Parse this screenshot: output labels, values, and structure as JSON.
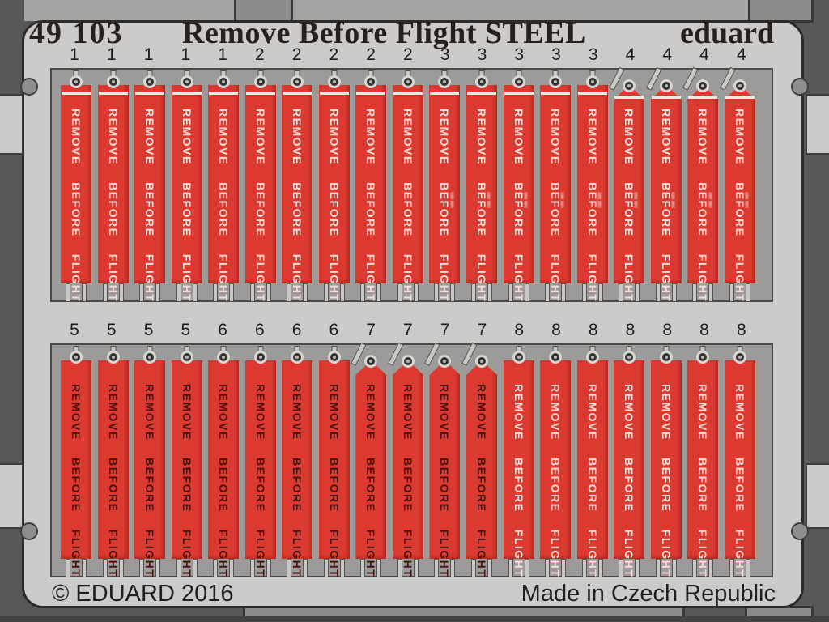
{
  "header": {
    "catalog_number": "49 103",
    "title": "Remove Before Flight STEEL",
    "brand": "eduard"
  },
  "footer": {
    "copyright": "© EDUARD 2016",
    "origin": "Made in Czech Republic"
  },
  "tag_text": "REMOVE BEFORE FLIGHT",
  "micro_text": "llllllll llllllll",
  "rows": [
    {
      "numbers": [
        "1",
        "1",
        "1",
        "1",
        "1",
        "2",
        "2",
        "2",
        "2",
        "2",
        "3",
        "3",
        "3",
        "3",
        "3",
        "4",
        "4",
        "4",
        "4"
      ]
    },
    {
      "numbers": [
        "5",
        "5",
        "5",
        "5",
        "6",
        "6",
        "6",
        "6",
        "7",
        "7",
        "7",
        "7",
        "8",
        "8",
        "8",
        "8",
        "8",
        "8",
        "8"
      ]
    }
  ],
  "groups": {
    "1": {
      "shape": "flat",
      "text": "light",
      "stripe": true,
      "micro": false
    },
    "2": {
      "shape": "flat",
      "text": "light",
      "stripe": true,
      "micro": false
    },
    "3": {
      "shape": "flat",
      "text": "light",
      "stripe": true,
      "micro": true
    },
    "4": {
      "shape": "pennant",
      "text": "light",
      "stripe": true,
      "micro": true
    },
    "5": {
      "shape": "flat",
      "text": "dark",
      "stripe": false,
      "micro": false
    },
    "6": {
      "shape": "flat",
      "text": "dark",
      "stripe": false,
      "micro": false
    },
    "7": {
      "shape": "pennant",
      "text": "dark",
      "stripe": false,
      "micro": false
    },
    "8": {
      "shape": "flat",
      "text": "light",
      "stripe": false,
      "micro": false
    }
  },
  "colors": {
    "bg": "#585856",
    "band": "#a6a5a3",
    "tab": "#8d8c8a",
    "tab_edge": "#3a3937",
    "sheet": "#cccbc9",
    "ink": "#26211d",
    "opening": "#9c9b99",
    "opening_edge": "#4a4948",
    "metal": "#c9c8c6",
    "metal_edge": "#55534f",
    "red": "#dc3a30",
    "stripe": "#f3e7e0",
    "text_light": "#f6ded6",
    "text_dark": "#47130c",
    "hole": "#8f8e8c",
    "hole_edge": "#3f3e3c"
  }
}
